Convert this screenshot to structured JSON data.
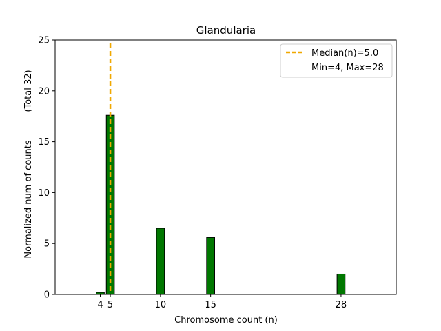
{
  "chart_data": {
    "type": "bar",
    "title": "Glandularia",
    "xlabel": "Chromosome count (n)",
    "ylabel": "Normalized num of counts",
    "ylabel_note": "(Total 32)",
    "x": [
      4,
      5,
      10,
      15,
      28
    ],
    "values": [
      0.2,
      17.6,
      6.5,
      5.6,
      2.0
    ],
    "bar_color": "#007700",
    "bar_edge_color": "#000000",
    "xlim": [
      -0.5,
      33.5
    ],
    "ylim": [
      0,
      25
    ],
    "yticks": [
      0,
      5,
      10,
      15,
      20,
      25
    ],
    "xticks": [
      4,
      5,
      10,
      15,
      28
    ],
    "grid": false,
    "median": {
      "value": 5.0,
      "label": "Median(n)=5.0",
      "color": "#f0a800"
    },
    "legend": {
      "placement": "top-right",
      "range_label": "Min=4, Max=28"
    }
  }
}
